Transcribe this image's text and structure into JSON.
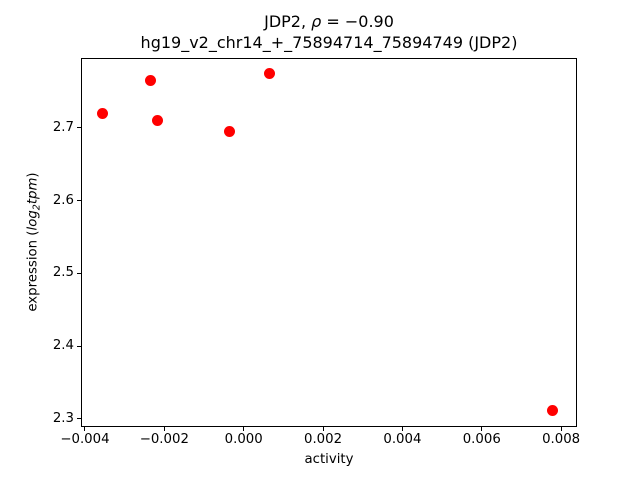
{
  "figure": {
    "title": {
      "prefix": "JDP2, ",
      "rho": "ρ",
      "rho_rest": " = −0.90"
    },
    "subtitle": "hg19_v2_chr14_+_75894714_75894749 (JDP2)",
    "ylabel": {
      "prefix": "expression (",
      "log": "log",
      "sub": "2",
      "var": "tpm",
      "suffix": ")"
    }
  },
  "chart_data": {
    "type": "scatter",
    "title": "JDP2, ρ = −0.90",
    "subtitle": "hg19_v2_chr14_+_75894714_75894749 (JDP2)",
    "xlabel": "activity",
    "ylabel": "expression (log2tpm)",
    "rho": -0.9,
    "marker_color": "#ff0000",
    "x": [
      -0.00355,
      -0.00234,
      -0.00216,
      -0.00035,
      0.00065,
      0.00777
    ],
    "y": [
      2.72,
      2.765,
      2.71,
      2.695,
      2.775,
      2.312
    ],
    "xlim": [
      -0.0041,
      0.0084
    ],
    "ylim": [
      2.289,
      2.796
    ],
    "xticks": {
      "values": [
        -0.004,
        -0.002,
        0.0,
        0.002,
        0.004,
        0.006,
        0.008
      ],
      "labels": [
        "−0.004",
        "−0.002",
        "0.000",
        "0.002",
        "0.004",
        "0.006",
        "0.008"
      ]
    },
    "yticks": {
      "values": [
        2.3,
        2.4,
        2.5,
        2.6,
        2.7
      ],
      "labels": [
        "2.3",
        "2.4",
        "2.5",
        "2.6",
        "2.7"
      ]
    },
    "grid": false,
    "legend": "none"
  }
}
